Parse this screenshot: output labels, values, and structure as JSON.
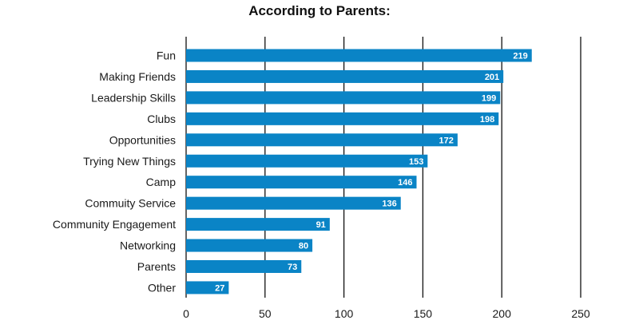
{
  "chart_data": {
    "type": "bar",
    "orientation": "horizontal",
    "title": "According to Parents:",
    "categories": [
      "Fun",
      "Making Friends",
      "Leadership Skills",
      "Clubs",
      "Opportunities",
      "Trying New Things",
      "Camp",
      "Commuity Service",
      "Community Engagement",
      "Networking",
      "Parents",
      "Other"
    ],
    "values": [
      219,
      201,
      199,
      198,
      172,
      153,
      146,
      136,
      91,
      80,
      73,
      27
    ],
    "xlim": [
      0,
      250
    ],
    "xticks": [
      0,
      50,
      100,
      150,
      200,
      250
    ],
    "xtick_labels": [
      "0",
      "50",
      "100",
      "150",
      "200",
      "250"
    ],
    "xlabel": "",
    "ylabel": "",
    "grid": "vertical",
    "legend": "none",
    "bar_color": "#0a84c6",
    "data_label_color": "#ffffff"
  }
}
